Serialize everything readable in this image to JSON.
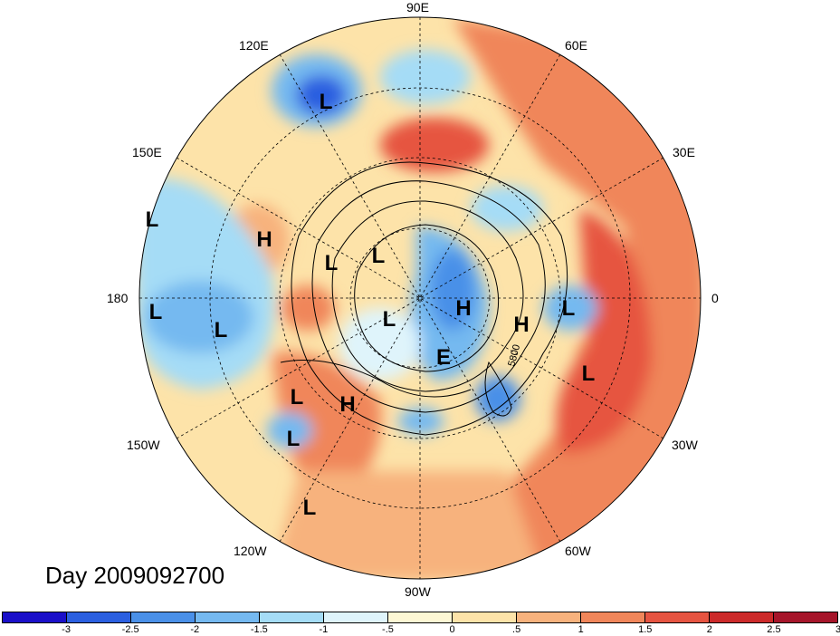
{
  "title": "Day 2009092700",
  "longitude_labels": {
    "lon_90e": "90E",
    "lon_120e": "120E",
    "lon_60e": "60E",
    "lon_150e": "150E",
    "lon_30e": "30E",
    "lon_180": "180",
    "lon_0": "0",
    "lon_150w": "150W",
    "lon_30w": "30W",
    "lon_120w": "120W",
    "lon_60w": "60W",
    "lon_90w": "90W"
  },
  "contour_label": "5800",
  "pressure_centers": [
    {
      "type": "L"
    },
    {
      "type": "L"
    },
    {
      "type": "H"
    },
    {
      "type": "L"
    },
    {
      "type": "L"
    },
    {
      "type": "L"
    },
    {
      "type": "L"
    },
    {
      "type": "L"
    },
    {
      "type": "H"
    },
    {
      "type": "L"
    },
    {
      "type": "L"
    },
    {
      "type": "E"
    },
    {
      "type": "H"
    },
    {
      "type": "L"
    },
    {
      "type": "H"
    },
    {
      "type": "L"
    },
    {
      "type": "L"
    }
  ],
  "colorbar": {
    "colors": [
      "#1a0fc9",
      "#2b5fe0",
      "#4a90e8",
      "#75b9f0",
      "#a5dcf6",
      "#dff4fb",
      "#fdf7d4",
      "#fde3a9",
      "#f7b27d",
      "#f0865a",
      "#e65441",
      "#cc2a2a",
      "#a6152a"
    ],
    "tick_labels": [
      "-3",
      "-2.5",
      "-2",
      "-1.5",
      "-1",
      "-.5",
      "0",
      ".5",
      "1",
      "1.5",
      "2",
      "2.5",
      "3"
    ]
  }
}
